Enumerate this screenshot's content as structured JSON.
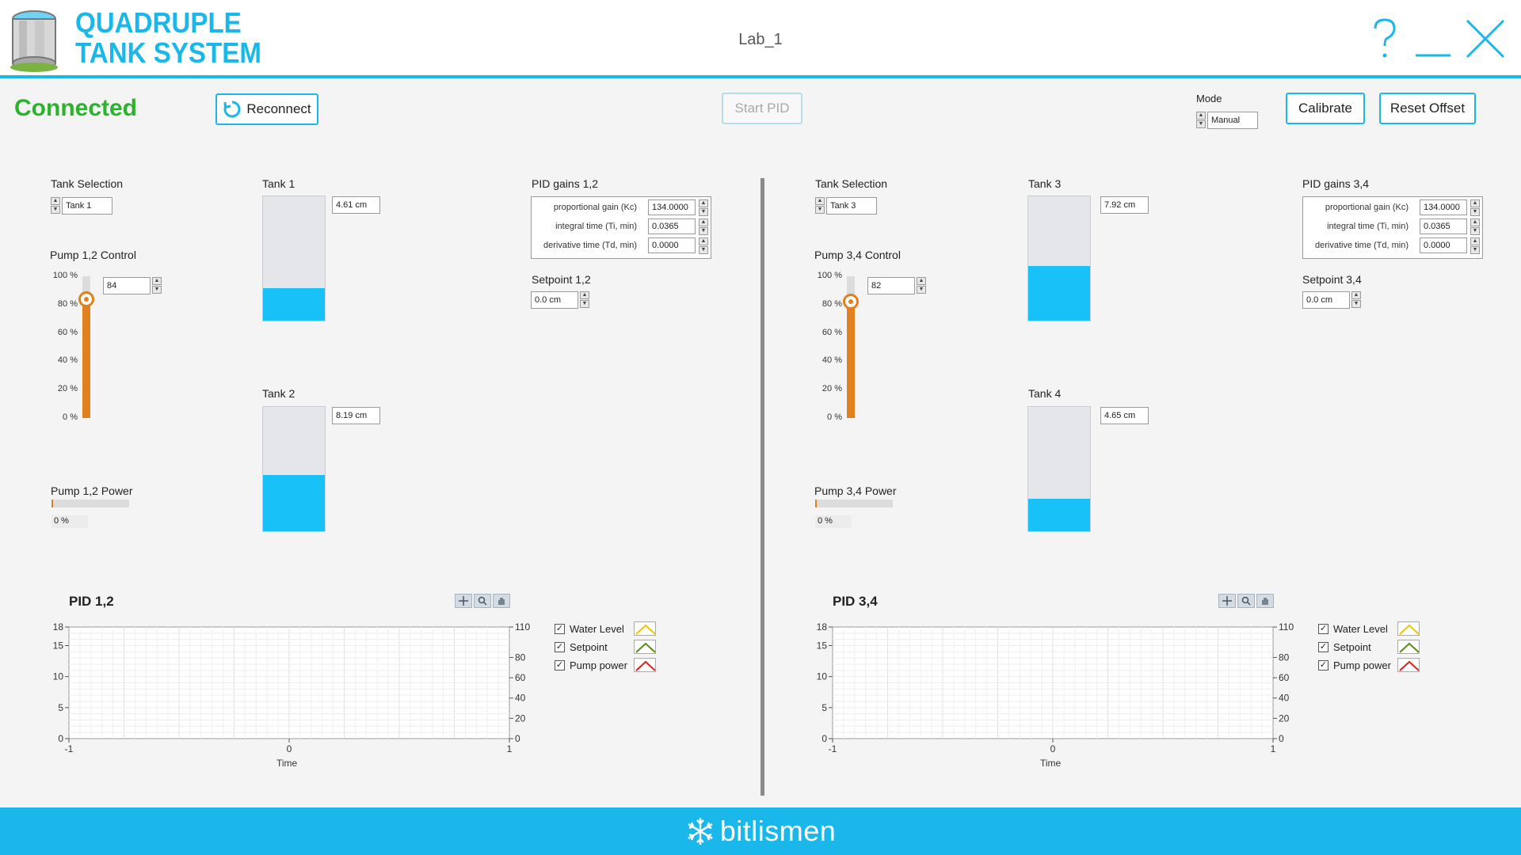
{
  "header": {
    "title_line1": "QUADRUPLE",
    "title_line2": "TANK SYSTEM",
    "lab_name": "Lab_1",
    "accent_color": "#1ab7ea",
    "help_icon": "help-icon",
    "minimize_icon": "minimize-icon",
    "close_icon": "close-icon"
  },
  "status": {
    "text": "Connected",
    "color": "#2cb22c"
  },
  "toolbar": {
    "reconnect_label": "Reconnect",
    "start_pid_label": "Start PID",
    "mode_label": "Mode",
    "mode_value": "Manual",
    "calibrate_label": "Calibrate",
    "reset_offset_label": "Reset Offset"
  },
  "left": {
    "tank_selection_label": "Tank Selection",
    "tank_selection_value": "Tank 1",
    "pump_control_label": "Pump 1,2 Control",
    "pump_control_value": "84",
    "pump_control_percent": 84,
    "slider_ticks": [
      "100 %",
      "80 %",
      "60 %",
      "40 %",
      "20 %",
      "0 %"
    ],
    "pump_power_label": "Pump 1,2 Power",
    "pump_power_value": "0 %",
    "tank_a": {
      "label": "Tank 1",
      "level": "4.61 cm",
      "fill": 0.26
    },
    "tank_b": {
      "label": "Tank 2",
      "level": "8.19 cm",
      "fill": 0.45
    },
    "pid_gains_label": "PID gains 1,2",
    "gains": [
      {
        "label": "proportional gain (Kc)",
        "value": "134.0000"
      },
      {
        "label": "integral time (Ti, min)",
        "value": "0.0365"
      },
      {
        "label": "derivative time (Td, min)",
        "value": "0.0000"
      }
    ],
    "setpoint_label": "Setpoint 1,2",
    "setpoint_value": "0.0 cm",
    "chart_title": "PID 1,2"
  },
  "right": {
    "tank_selection_label": "Tank Selection",
    "tank_selection_value": "Tank 3",
    "pump_control_label": "Pump 3,4 Control",
    "pump_control_value": "82",
    "pump_control_percent": 82,
    "slider_ticks": [
      "100 %",
      "80 %",
      "60 %",
      "40 %",
      "20 %",
      "0 %"
    ],
    "pump_power_label": "Pump 3,4 Power",
    "pump_power_value": "0 %",
    "tank_a": {
      "label": "Tank 3",
      "level": "7.92 cm",
      "fill": 0.44
    },
    "tank_b": {
      "label": "Tank 4",
      "level": "4.65 cm",
      "fill": 0.26
    },
    "pid_gains_label": "PID gains 3,4",
    "gains": [
      {
        "label": "proportional gain (Kc)",
        "value": "134.0000"
      },
      {
        "label": "integral time (Ti, min)",
        "value": "0.0365"
      },
      {
        "label": "derivative time (Td, min)",
        "value": "0.0000"
      }
    ],
    "setpoint_label": "Setpoint 3,4",
    "setpoint_value": "0.0 cm",
    "chart_title": "PID 3,4"
  },
  "legend": [
    {
      "label": "Water Level",
      "color": "#f2c300",
      "checked": true
    },
    {
      "label": "Setpoint",
      "color": "#5a8a1a",
      "checked": true
    },
    {
      "label": "Pump power",
      "color": "#e02020",
      "checked": true
    }
  ],
  "chart_data": [
    {
      "type": "line",
      "title": "PID 1,2",
      "xlabel": "Time",
      "xlim": [
        -1,
        1
      ],
      "x_ticks": [
        "-1",
        "0",
        "1"
      ],
      "ylim_left": [
        0,
        18
      ],
      "y_ticks_left": [
        "18",
        "15",
        "10",
        "5",
        "0"
      ],
      "ylim_right": [
        0,
        110
      ],
      "y_ticks_right": [
        "110",
        "80",
        "60",
        "40",
        "20",
        "0"
      ],
      "grid": true,
      "legend_position": "right",
      "series": [
        {
          "name": "Water Level",
          "values": []
        },
        {
          "name": "Setpoint",
          "values": []
        },
        {
          "name": "Pump power",
          "values": []
        }
      ]
    },
    {
      "type": "line",
      "title": "PID 3,4",
      "xlabel": "Time",
      "xlim": [
        -1,
        1
      ],
      "x_ticks": [
        "-1",
        "0",
        "1"
      ],
      "ylim_left": [
        0,
        18
      ],
      "y_ticks_left": [
        "18",
        "15",
        "10",
        "5",
        "0"
      ],
      "ylim_right": [
        0,
        110
      ],
      "y_ticks_right": [
        "110",
        "80",
        "60",
        "40",
        "20",
        "0"
      ],
      "grid": true,
      "legend_position": "right",
      "series": [
        {
          "name": "Water Level",
          "values": []
        },
        {
          "name": "Setpoint",
          "values": []
        },
        {
          "name": "Pump power",
          "values": []
        }
      ]
    }
  ],
  "footer": {
    "brand": "bitlismen",
    "logo_icon": "snowflake-logo-icon"
  }
}
